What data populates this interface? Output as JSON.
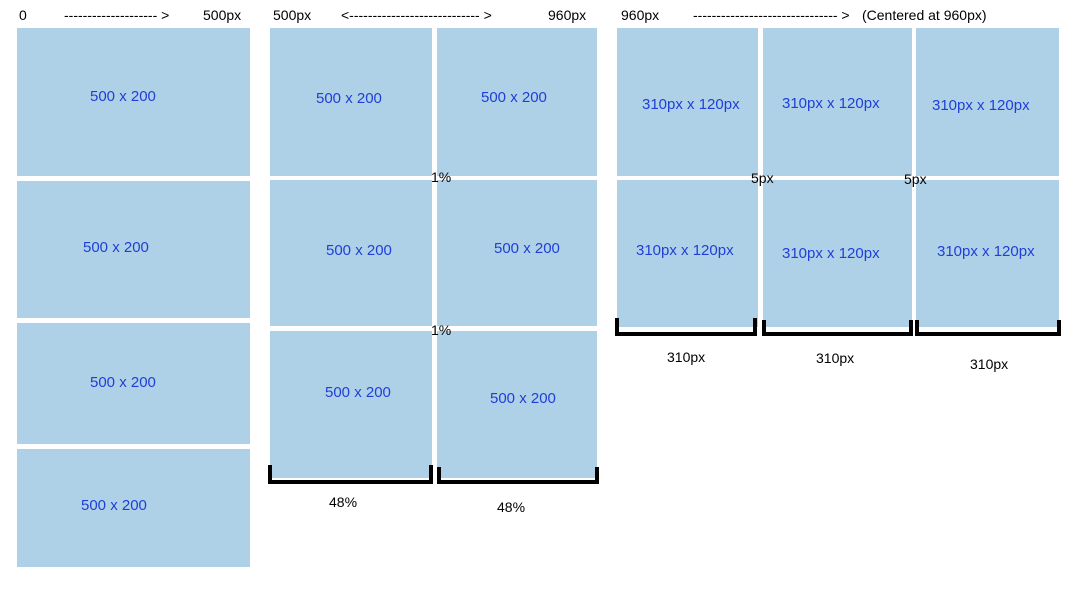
{
  "header": {
    "col1": {
      "start": "0",
      "arrow": "-------------------- >",
      "end": "500px"
    },
    "col2": {
      "start": "500px",
      "arrow": "<---------------------------- >",
      "end": "960px"
    },
    "col3": {
      "start": "960px",
      "arrow": "------------------------------- >",
      "note": "(Centered at 960px)"
    }
  },
  "column1": {
    "boxes": [
      "500 x 200",
      "500 x 200",
      "500 x 200",
      "500 x 200"
    ]
  },
  "column2": {
    "boxes": [
      "500 x 200",
      "500 x 200",
      "500 x 200",
      "500 x 200",
      "500 x 200",
      "500 x 200"
    ],
    "gap_labels": [
      "1%",
      "1%"
    ],
    "width_labels": [
      "48%",
      "48%"
    ]
  },
  "column3": {
    "boxes": [
      "310px x 120px",
      "310px x 120px",
      "310px x 120px",
      "310px x 120px",
      "310px x 120px",
      "310px x 120px"
    ],
    "gap_labels": [
      "5px",
      "5px"
    ],
    "width_labels": [
      "310px",
      "310px",
      "310px"
    ]
  }
}
